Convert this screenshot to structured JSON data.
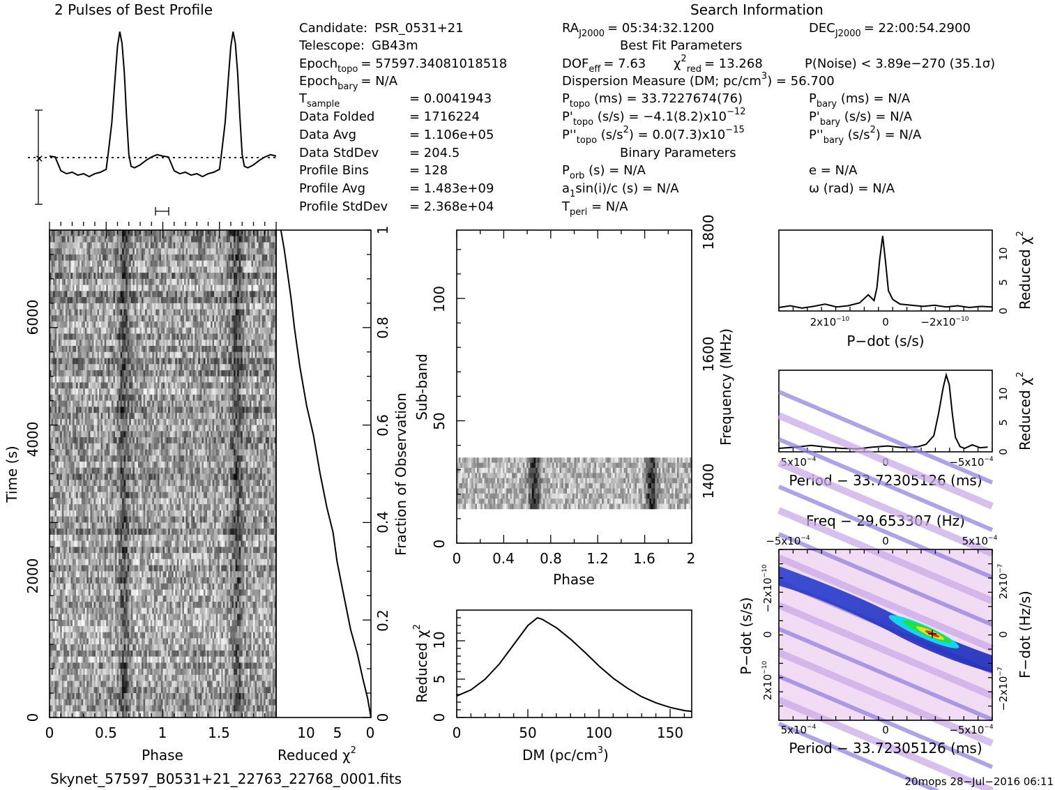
{
  "profile_panel": {
    "title": "2 Pulses of Best Profile"
  },
  "search_info": {
    "title": "Search Information",
    "rows": [
      {
        "label": "Candidate:",
        "value": "PSR_0531+21"
      },
      {
        "label": "Telescope:",
        "value": "GB43m"
      },
      {
        "label": "Epoch",
        "sub": "topo",
        "value": "= 57597.34081018518"
      },
      {
        "label": "Epoch",
        "sub": "bary",
        "value": "= N/A"
      },
      {
        "label": "T",
        "sub": "sample",
        "value": "=   0.0041943"
      },
      {
        "label": "Data Folded",
        "value": "=   1716224"
      },
      {
        "label": "Data Avg",
        "value": "=   1.106e+05"
      },
      {
        "label": "Data StdDev",
        "value": "=   204.5"
      },
      {
        "label": "Profile Bins",
        "value": "=   128"
      },
      {
        "label": "Profile Avg",
        "value": "=   1.483e+09"
      },
      {
        "label": "Profile StdDev",
        "value": "=   2.368e+04"
      }
    ],
    "ra_label": "RA",
    "ra_sub": "J2000",
    "ra_value": "= 05:34:32.1200",
    "dec_label": "DEC",
    "dec_sub": "J2000",
    "dec_value": "= 22:00:54.2900",
    "best_fit_title": "Best Fit Parameters",
    "dof_label": "DOF",
    "dof_sub": "eff",
    "dof_value": "= 7.63",
    "chi_label": "χ",
    "chi_sup": "2",
    "chi_sub": "red",
    "chi_value": "= 13.268",
    "pnoise_value": "P(Noise) < 3.89e−270  (35.1σ)",
    "dm_text": "Dispersion Measure (DM; pc/cm",
    "dm_sup": "3",
    "dm_value": ") = 56.700",
    "ptopo_label": "P",
    "ptopo_sub": "topo",
    "ptopo_value": " (ms) =  33.7227674(76)",
    "pbary_label": "P",
    "pbary_sub": "bary",
    "pbary_value": " (ms) = N/A",
    "pdtopo_label": "P'",
    "pdtopo_sub": "topo",
    "pdtopo_value": " (s/s) = −4.1(8.2)x10",
    "pdtopo_exp": "−12",
    "pdbary_label": "P'",
    "pdbary_sub": "bary",
    "pdbary_value": " (s/s) = N/A",
    "pddtopo_label": "P''",
    "pddtopo_sub": "topo",
    "pddtopo_value": " (s/s",
    "pddtopo_sup": "2",
    "pddtopo_value2": ") = 0.0(7.3)x10",
    "pddtopo_exp": "−15",
    "pddbary_label": "P''",
    "pddbary_sub": "bary",
    "pddbary_value": " (s/s",
    "pddbary_sup": "2",
    "pddbary_value2": ") = N/A",
    "binary_title": "Binary Parameters",
    "porb_label": "P",
    "porb_sub": "orb",
    "porb_value": " (s) = N/A",
    "asini_label": "a",
    "asini_sub": "1",
    "asini_value": "sin(i)/c (s) = N/A",
    "tperi_label": "T",
    "tperi_sub": "peri",
    "tperi_value": " = N/A",
    "e_value": "e = N/A",
    "omega_value": "ω (rad) = N/A"
  },
  "time_phase_panel": {
    "xlabel": "Phase",
    "ylabel": "Time (s)",
    "xticks": [
      "0",
      "0.5",
      "1",
      "1.5"
    ],
    "yticks": [
      "0",
      "2000",
      "4000",
      "6000"
    ],
    "right_ylabel": "Fraction of Observation",
    "right_yticks": [
      "0",
      "0.2",
      "0.4",
      "0.6",
      "0.8",
      "1"
    ]
  },
  "chi_time_panel": {
    "xlabel": "Reduced χ",
    "xlabel_sup": "2",
    "xticks": [
      "10",
      "5",
      "0"
    ]
  },
  "subband_panel": {
    "xlabel": "Phase",
    "ylabel": "Sub-band",
    "xticks": [
      "0",
      "0.4",
      "0.8",
      "1.2",
      "1.6",
      "2"
    ],
    "yticks": [
      "0",
      "50",
      "100"
    ],
    "right_ylabel": "Frequency (MHz)",
    "right_yticks": [
      "1400",
      "1600",
      "1800"
    ]
  },
  "dm_panel": {
    "xlabel": "DM (pc/cm",
    "xlabel_sup": "3",
    "xlabel_end": ")",
    "ylabel": "Reduced χ",
    "ylabel_sup": "2",
    "xticks": [
      "0",
      "50",
      "100",
      "150"
    ],
    "yticks": [
      "0",
      "5",
      "10"
    ]
  },
  "pdot_panel": {
    "xlabel": "P−dot (s/s)",
    "ylabel": "Reduced χ",
    "ylabel_sup": "2",
    "xticks": [
      {
        "m": "2x10",
        "e": "−10"
      },
      {
        "m": "0",
        "e": ""
      },
      {
        "m": "−2x10",
        "e": "−10"
      }
    ],
    "yticks": [
      "0",
      "5",
      "10"
    ]
  },
  "period_panel": {
    "xlabel": "Period − 33.72305126 (ms)",
    "ylabel": "Reduced χ",
    "ylabel_sup": "2",
    "xticks": [
      {
        "m": "5x10",
        "e": "−4"
      },
      {
        "m": "0",
        "e": ""
      },
      {
        "m": "−5x10",
        "e": "−4"
      }
    ],
    "yticks": [
      "0",
      "5",
      "10"
    ]
  },
  "ppdot_panel": {
    "title": "Freq − 29.653307 (Hz)",
    "xlabel": "Period − 33.72305126 (ms)",
    "ylabel": "P−dot (s/s)",
    "right_ylabel": "F−dot (Hz/s)",
    "top_xticks": [
      {
        "m": "−5x10",
        "e": "−4"
      },
      {
        "m": "0",
        "e": ""
      },
      {
        "m": "5x10",
        "e": "−4"
      }
    ],
    "bottom_xticks": [
      {
        "m": "5x10",
        "e": "−4"
      },
      {
        "m": "0",
        "e": ""
      },
      {
        "m": "−5x10",
        "e": "−4"
      }
    ],
    "left_yticks": [
      {
        "m": "−2x10",
        "e": "−10"
      },
      {
        "m": "0",
        "e": ""
      },
      {
        "m": "2x10",
        "e": "−10"
      }
    ],
    "right_yticks": [
      {
        "m": "2x10",
        "e": "−7"
      },
      {
        "m": "0",
        "e": ""
      },
      {
        "m": "−2x10",
        "e": "−7"
      }
    ]
  },
  "footer": {
    "filename": "Skynet_57597_B0531+21_22763_22768_0001.fits",
    "stamp": "20mops 28−Jul−2016 06:11"
  },
  "chart_data": [
    {
      "type": "line",
      "panel": "profile",
      "x": [
        0,
        0.05,
        0.1,
        0.15,
        0.2,
        0.25,
        0.3,
        0.35,
        0.4,
        0.45,
        0.5,
        0.52,
        0.55,
        0.58,
        0.6,
        0.62,
        0.64,
        0.66,
        0.68,
        0.7,
        0.72,
        0.75,
        0.8,
        0.85,
        0.9,
        0.95,
        1.0,
        1.05,
        1.1,
        1.15,
        1.2,
        1.25,
        1.3,
        1.35,
        1.4,
        1.45,
        1.5,
        1.52,
        1.55,
        1.58,
        1.6,
        1.62,
        1.64,
        1.66,
        1.68,
        1.7,
        1.72,
        1.75,
        1.8,
        1.85,
        1.9,
        1.95,
        2.0
      ],
      "y": [
        0.05,
        0.02,
        -0.45,
        -0.55,
        -0.5,
        -0.6,
        -0.55,
        -0.65,
        -0.55,
        -0.5,
        -0.4,
        0.2,
        1.2,
        2.8,
        3.8,
        4.3,
        3.9,
        2.9,
        1.4,
        0.1,
        -0.3,
        -0.35,
        -0.25,
        -0.1,
        0.02,
        0.1,
        0.05,
        0.02,
        -0.45,
        -0.55,
        -0.5,
        -0.6,
        -0.55,
        -0.65,
        -0.55,
        -0.5,
        -0.4,
        0.2,
        1.2,
        2.8,
        3.8,
        4.3,
        3.9,
        2.9,
        1.4,
        0.1,
        -0.3,
        -0.35,
        -0.25,
        -0.1,
        0.02,
        0.1,
        0.05
      ],
      "xlim": [
        0,
        2
      ]
    },
    {
      "type": "line",
      "panel": "chi_vs_time",
      "x": [
        0,
        0.5,
        1.2,
        2,
        3,
        4,
        5,
        5.6,
        6.5,
        7.5,
        8.5,
        9.5,
        10.5,
        11.3,
        11.8,
        12.2,
        12.8,
        13.3
      ],
      "y": [
        0,
        0.04,
        0.08,
        0.13,
        0.18,
        0.25,
        0.32,
        0.38,
        0.43,
        0.5,
        0.58,
        0.64,
        0.72,
        0.8,
        0.86,
        0.9,
        0.96,
        1.0
      ],
      "xlim": [
        14,
        0
      ],
      "ylim": [
        0,
        1
      ]
    },
    {
      "type": "line",
      "panel": "chi_vs_dm",
      "x": [
        0,
        10,
        20,
        30,
        40,
        50,
        56.7,
        60,
        70,
        80,
        90,
        100,
        110,
        120,
        130,
        140,
        150,
        160,
        165
      ],
      "y": [
        2.8,
        3.6,
        5.0,
        7.0,
        9.5,
        12.0,
        13.0,
        12.8,
        11.7,
        10.2,
        8.5,
        6.7,
        5.1,
        3.8,
        2.7,
        1.9,
        1.3,
        0.9,
        0.8
      ],
      "xlim": [
        0,
        165
      ],
      "ylim": [
        0,
        14
      ]
    },
    {
      "type": "line",
      "panel": "chi_vs_pdot",
      "x": [
        3.6,
        3.2,
        2.8,
        2.4,
        2.0,
        1.6,
        1.2,
        0.8,
        0.5,
        0.3,
        0.2,
        0.1,
        0,
        -0.1,
        -0.2,
        -0.35,
        -0.6,
        -1.0,
        -1.4,
        -1.8,
        -2.2,
        -2.6,
        -3.0,
        -3.4,
        -3.8
      ],
      "y": [
        0.6,
        0.9,
        0.5,
        0.8,
        1.2,
        0.7,
        0.9,
        1.4,
        2.8,
        1.8,
        4.0,
        9.0,
        13.0,
        8.5,
        3.5,
        2.0,
        1.2,
        1.0,
        0.8,
        1.0,
        0.7,
        0.9,
        0.6,
        0.8,
        0.7
      ],
      "x_scale": 1e-10,
      "xlim": [
        3.6,
        -3.8
      ],
      "ylim": [
        0,
        14
      ]
    },
    {
      "type": "line",
      "panel": "chi_vs_period",
      "x": [
        8.1,
        7.0,
        6.0,
        5.0,
        4.0,
        3.0,
        2.0,
        1.0,
        0,
        -1.0,
        -1.5,
        -2.0,
        -2.3,
        -2.6,
        -2.8,
        -3.0,
        -3.2,
        -3.4,
        -3.7,
        -4.0,
        -4.5,
        -5.0,
        -5.5
      ],
      "y": [
        0.6,
        0.8,
        1.1,
        0.8,
        0.6,
        0.5,
        0.8,
        1.0,
        0.7,
        0.9,
        1.3,
        2.8,
        6.5,
        11.0,
        13.2,
        11.5,
        6.5,
        2.5,
        0.9,
        0.6,
        1.2,
        0.7,
        0.8
      ],
      "x_scale": 0.0001,
      "xlim": [
        8.1,
        -5.8
      ],
      "ylim": [
        0,
        14
      ]
    },
    {
      "type": "heatmap",
      "panel": "period_pdot",
      "peak": {
        "period_offset_ms": -0.00028,
        "pdot": 0
      },
      "xlim": [
        0.00085,
        -0.00058
      ],
      "ylim": [
        -3.6e-10,
        3.6e-10
      ]
    },
    {
      "type": "heatmap",
      "panel": "time_vs_phase",
      "pulse_phases": [
        0.65,
        1.65
      ],
      "rows": 80,
      "cols": 128,
      "xlim": [
        0,
        2
      ],
      "ylim": [
        0,
        7000
      ]
    },
    {
      "type": "heatmap",
      "panel": "subband_vs_phase",
      "pulse_phases": [
        0.65,
        1.65
      ],
      "occupied_subbands": [
        14,
        35
      ],
      "xlim": [
        0,
        2
      ],
      "ylim": [
        0,
        128
      ]
    }
  ]
}
